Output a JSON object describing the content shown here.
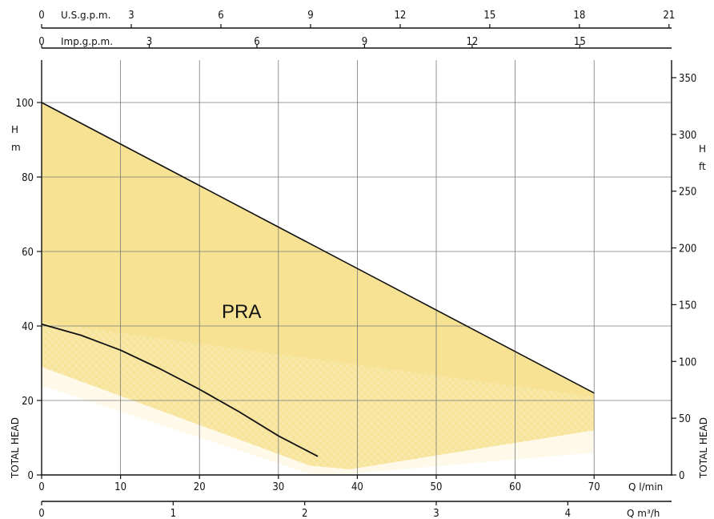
{
  "chart_data": {
    "type": "area",
    "model_label": "PRA",
    "x_primary": {
      "label": "Q l/min",
      "range": [
        0,
        80
      ],
      "ticks": [
        0,
        10,
        20,
        30,
        40,
        50,
        60,
        70
      ]
    },
    "x_secondary_bottom": {
      "label": "Q m³/h",
      "ticks": [
        0,
        1,
        2,
        3,
        4
      ]
    },
    "x_top_usgpm": {
      "label": "U.S.g.p.m.",
      "ticks": [
        0,
        3,
        6,
        9,
        12,
        15,
        18,
        21
      ]
    },
    "x_top_impgpm": {
      "label": "Imp.g.p.m.",
      "ticks": [
        0,
        3,
        6,
        9,
        12,
        15
      ]
    },
    "y_left": {
      "label": "H m",
      "side_label": "TOTAL HEAD",
      "range": [
        0,
        110
      ],
      "ticks": [
        0,
        20,
        40,
        60,
        80,
        100
      ]
    },
    "y_right": {
      "label": "H ft",
      "side_label": "TOTAL HEAD",
      "ticks": [
        0,
        50,
        100,
        150,
        200,
        250,
        300,
        350
      ]
    },
    "grid": true,
    "series": [
      {
        "role": "envelope_upper",
        "x": [
          0,
          70
        ],
        "y": [
          100,
          22
        ]
      },
      {
        "role": "pump_curve",
        "x": [
          0,
          5,
          10,
          15,
          20,
          25,
          30,
          35
        ],
        "y": [
          40.5,
          37.5,
          33.5,
          28.5,
          23,
          17,
          10.5,
          5
        ]
      }
    ],
    "colors": {
      "envelope_fill": "#f6e08c",
      "gradient_fill": "#fbefc2",
      "line": "#111111",
      "grid": "#7a7a7a"
    }
  }
}
